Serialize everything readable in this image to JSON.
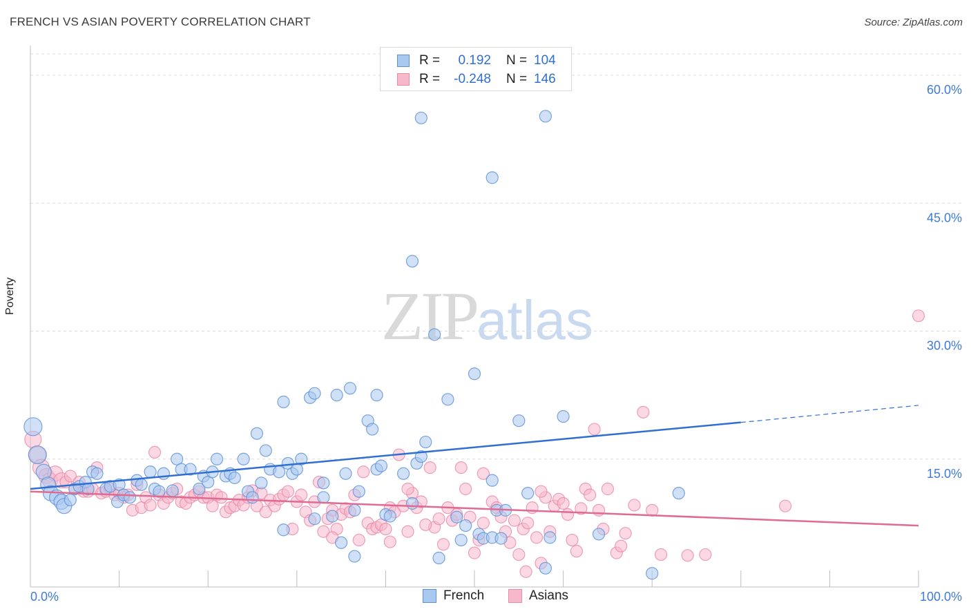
{
  "title": "FRENCH VS ASIAN POVERTY CORRELATION CHART",
  "source": "Source: ZipAtlas.com",
  "watermark": {
    "zip": "ZIP",
    "atlas": "atlas"
  },
  "legend": {
    "rows": [
      {
        "r_label": "R =",
        "r_value": "0.192",
        "n_label": "N =",
        "n_value": "104"
      },
      {
        "r_label": "R =",
        "r_value": "-0.248",
        "n_label": "N =",
        "n_value": "146"
      }
    ]
  },
  "bottom_legend": [
    "French",
    "Asians"
  ],
  "colors": {
    "french_fill": "#a9c8f0",
    "french_stroke": "#5b8fd6",
    "french_line": "#2f6fd1",
    "asian_fill": "#f7b8cc",
    "asian_stroke": "#e98aa8",
    "asian_line": "#e06a92",
    "tick_label": "#3d7bd9"
  },
  "chart_data": {
    "type": "scatter",
    "title": "FRENCH VS ASIAN POVERTY CORRELATION CHART",
    "xlabel": "",
    "ylabel": "Poverty",
    "xlim": [
      0,
      100
    ],
    "ylim": [
      0,
      63
    ],
    "x_tick_labels": [
      "0.0%",
      "100.0%"
    ],
    "y_ticks": [
      15,
      30,
      45,
      60
    ],
    "y_tick_labels": [
      "15.0%",
      "30.0%",
      "45.0%",
      "60.0%"
    ],
    "grid": true,
    "legend_position": "top-center",
    "series": [
      {
        "name": "French",
        "trend": {
          "x": [
            0,
            80
          ],
          "y": [
            11.5,
            19.3
          ],
          "dashed_to": [
            100,
            21.3
          ]
        },
        "points": [
          [
            0.3,
            18.8
          ],
          [
            0.8,
            15.5
          ],
          [
            1.5,
            13.5
          ],
          [
            2,
            12
          ],
          [
            2.3,
            11
          ],
          [
            3,
            10.5
          ],
          [
            3.5,
            10
          ],
          [
            3.8,
            9.5
          ],
          [
            4.5,
            10.2
          ],
          [
            5,
            11.5
          ],
          [
            5.5,
            11.8
          ],
          [
            6.2,
            12.3
          ],
          [
            6.5,
            11.5
          ],
          [
            7,
            13.5
          ],
          [
            7.5,
            13.3
          ],
          [
            8.5,
            11.5
          ],
          [
            9,
            11.8
          ],
          [
            9.8,
            10
          ],
          [
            10,
            12
          ],
          [
            10.5,
            10.8
          ],
          [
            11.2,
            10.5
          ],
          [
            12,
            12.5
          ],
          [
            12.5,
            12
          ],
          [
            13.5,
            13.5
          ],
          [
            14,
            11.5
          ],
          [
            14.5,
            11.2
          ],
          [
            15,
            13.3
          ],
          [
            16,
            11.3
          ],
          [
            16.5,
            15
          ],
          [
            17,
            13.8
          ],
          [
            18,
            13.8
          ],
          [
            19,
            11.5
          ],
          [
            19.5,
            13
          ],
          [
            20,
            12.3
          ],
          [
            20.5,
            13.5
          ],
          [
            21,
            15
          ],
          [
            22,
            13
          ],
          [
            22.5,
            13.3
          ],
          [
            23,
            12.8
          ],
          [
            24,
            15
          ],
          [
            24.5,
            11.2
          ],
          [
            25,
            10.5
          ],
          [
            25.5,
            18
          ],
          [
            26,
            12.2
          ],
          [
            26.5,
            16
          ],
          [
            27,
            13.8
          ],
          [
            28,
            13.5
          ],
          [
            28.5,
            21.7
          ],
          [
            29,
            14.5
          ],
          [
            29.5,
            13.3
          ],
          [
            30,
            13.8
          ],
          [
            30.5,
            15
          ],
          [
            31.5,
            22.2
          ],
          [
            32,
            22.7
          ],
          [
            32,
            8
          ],
          [
            33,
            12.2
          ],
          [
            33,
            10.5
          ],
          [
            34,
            8.3
          ],
          [
            34.5,
            22.5
          ],
          [
            35,
            5.2
          ],
          [
            35.5,
            13.3
          ],
          [
            36,
            23.3
          ],
          [
            36.5,
            9
          ],
          [
            36.5,
            3.6
          ],
          [
            37,
            11.2
          ],
          [
            38,
            19.5
          ],
          [
            38.5,
            18.5
          ],
          [
            39,
            22.5
          ],
          [
            39,
            13.8
          ],
          [
            39.5,
            14.2
          ],
          [
            40,
            8.5
          ],
          [
            40.5,
            8.3
          ],
          [
            42,
            13.3
          ],
          [
            43,
            38.2
          ],
          [
            43.5,
            14.5
          ],
          [
            44,
            15.3
          ],
          [
            44.5,
            17
          ],
          [
            45.5,
            29.6
          ],
          [
            46,
            3.4
          ],
          [
            47,
            22
          ],
          [
            48,
            8.2
          ],
          [
            48.5,
            5.5
          ],
          [
            49,
            7.2
          ],
          [
            50,
            25
          ],
          [
            50.5,
            6.2
          ],
          [
            51,
            5.7
          ],
          [
            52,
            48
          ],
          [
            52,
            12.5
          ],
          [
            52,
            5.8
          ],
          [
            52.5,
            9
          ],
          [
            53,
            5.7
          ],
          [
            53.5,
            9
          ],
          [
            55,
            19.5
          ],
          [
            56,
            11
          ],
          [
            44,
            55
          ],
          [
            58,
            55.2
          ],
          [
            58,
            2.2
          ],
          [
            58.5,
            5.8
          ],
          [
            60,
            20
          ],
          [
            64,
            6.2
          ],
          [
            73,
            11
          ],
          [
            70,
            1.6
          ],
          [
            43,
            9.8
          ],
          [
            28.5,
            6.7
          ]
        ]
      },
      {
        "name": "Asians",
        "trend": {
          "x": [
            0,
            100
          ],
          "y": [
            11.2,
            7.2
          ]
        },
        "points": [
          [
            0.3,
            17.3
          ],
          [
            0.8,
            15.5
          ],
          [
            1.2,
            14
          ],
          [
            1.8,
            13
          ],
          [
            2.2,
            12.5
          ],
          [
            2.8,
            13.3
          ],
          [
            3.5,
            12.5
          ],
          [
            4,
            12.3
          ],
          [
            4.5,
            13
          ],
          [
            5,
            11.5
          ],
          [
            5.5,
            12.3
          ],
          [
            6,
            11.2
          ],
          [
            6.5,
            11.2
          ],
          [
            7,
            11.5
          ],
          [
            7.5,
            14
          ],
          [
            8,
            11
          ],
          [
            8.5,
            11.2
          ],
          [
            9,
            11.5
          ],
          [
            9.5,
            10.8
          ],
          [
            10,
            11
          ],
          [
            10.5,
            10.5
          ],
          [
            11,
            10.8
          ],
          [
            11.5,
            9
          ],
          [
            12,
            12
          ],
          [
            12.5,
            9.3
          ],
          [
            13,
            10.5
          ],
          [
            13.5,
            9.6
          ],
          [
            14,
            15.8
          ],
          [
            14.5,
            10.8
          ],
          [
            15,
            9.8
          ],
          [
            15.5,
            10.5
          ],
          [
            16,
            11
          ],
          [
            16.5,
            11.5
          ],
          [
            17,
            10
          ],
          [
            17.5,
            9.8
          ],
          [
            18,
            10.5
          ],
          [
            18.5,
            10.8
          ],
          [
            19,
            11.2
          ],
          [
            19.5,
            10.5
          ],
          [
            20,
            10.5
          ],
          [
            20.5,
            9.5
          ],
          [
            21,
            10.8
          ],
          [
            21.5,
            10.5
          ],
          [
            22,
            8.8
          ],
          [
            22.5,
            9.3
          ],
          [
            23,
            9.5
          ],
          [
            23.5,
            10.2
          ],
          [
            24,
            9.6
          ],
          [
            24.5,
            10.5
          ],
          [
            25,
            11.3
          ],
          [
            25.5,
            9.5
          ],
          [
            26,
            11
          ],
          [
            26.5,
            8.8
          ],
          [
            27,
            10.2
          ],
          [
            27.5,
            9.5
          ],
          [
            28,
            10.3
          ],
          [
            28.5,
            10.8
          ],
          [
            29,
            11.2
          ],
          [
            29.5,
            6.8
          ],
          [
            30,
            10
          ],
          [
            30.5,
            10.8
          ],
          [
            31,
            8.8
          ],
          [
            31.5,
            7.8
          ],
          [
            32,
            10
          ],
          [
            32.5,
            12.3
          ],
          [
            33,
            6.5
          ],
          [
            33.5,
            8
          ],
          [
            34,
            9
          ],
          [
            34.5,
            6.8
          ],
          [
            35,
            8.5
          ],
          [
            35.5,
            9.2
          ],
          [
            36,
            8.8
          ],
          [
            36.5,
            10.8
          ],
          [
            37,
            5.5
          ],
          [
            37.5,
            13.5
          ],
          [
            38,
            7.5
          ],
          [
            38.5,
            6.8
          ],
          [
            39,
            7
          ],
          [
            39.5,
            7.3
          ],
          [
            40,
            6.8
          ],
          [
            40.5,
            9.3
          ],
          [
            41,
            8.8
          ],
          [
            41.5,
            15.5
          ],
          [
            42,
            9.5
          ],
          [
            42.5,
            6.5
          ],
          [
            43,
            11
          ],
          [
            43.5,
            9.3
          ],
          [
            44,
            10
          ],
          [
            45,
            14
          ],
          [
            45.5,
            7
          ],
          [
            46,
            8
          ],
          [
            46.5,
            5
          ],
          [
            47,
            9.3
          ],
          [
            47.5,
            7.8
          ],
          [
            48,
            8.5
          ],
          [
            48.5,
            14
          ],
          [
            49,
            11.5
          ],
          [
            49.5,
            8.2
          ],
          [
            50,
            4
          ],
          [
            50.5,
            5.5
          ],
          [
            51,
            7.5
          ],
          [
            52,
            10
          ],
          [
            52.5,
            9.3
          ],
          [
            53,
            8.2
          ],
          [
            53.5,
            6.5
          ],
          [
            54,
            5.2
          ],
          [
            54.5,
            7.8
          ],
          [
            55,
            3.8
          ],
          [
            55.5,
            6.8
          ],
          [
            56,
            7.5
          ],
          [
            56.5,
            9.3
          ],
          [
            57,
            5.8
          ],
          [
            57.5,
            2.8
          ],
          [
            58,
            10.5
          ],
          [
            58.5,
            6.5
          ],
          [
            59,
            9.5
          ],
          [
            59.5,
            10.3
          ],
          [
            60,
            9.8
          ],
          [
            60.5,
            8.5
          ],
          [
            61,
            5.5
          ],
          [
            61.5,
            4.2
          ],
          [
            62,
            9.2
          ],
          [
            62.5,
            11.5
          ],
          [
            63,
            10.8
          ],
          [
            63.5,
            18.5
          ],
          [
            64,
            9
          ],
          [
            64.5,
            6.8
          ],
          [
            65,
            11.5
          ],
          [
            66,
            4
          ],
          [
            66.5,
            4.8
          ],
          [
            67,
            6.3
          ],
          [
            68,
            9.6
          ],
          [
            69,
            20.5
          ],
          [
            70,
            9
          ],
          [
            71,
            3.8
          ],
          [
            74,
            3.7
          ],
          [
            76,
            3.8
          ],
          [
            85,
            9.5
          ],
          [
            100,
            31.8
          ],
          [
            55.8,
            1.8
          ],
          [
            34,
            5.8
          ],
          [
            40.5,
            5.3
          ],
          [
            44.5,
            7.3
          ],
          [
            51,
            13.3
          ],
          [
            57.5,
            11.2
          ],
          [
            42.5,
            11.5
          ]
        ]
      }
    ]
  }
}
